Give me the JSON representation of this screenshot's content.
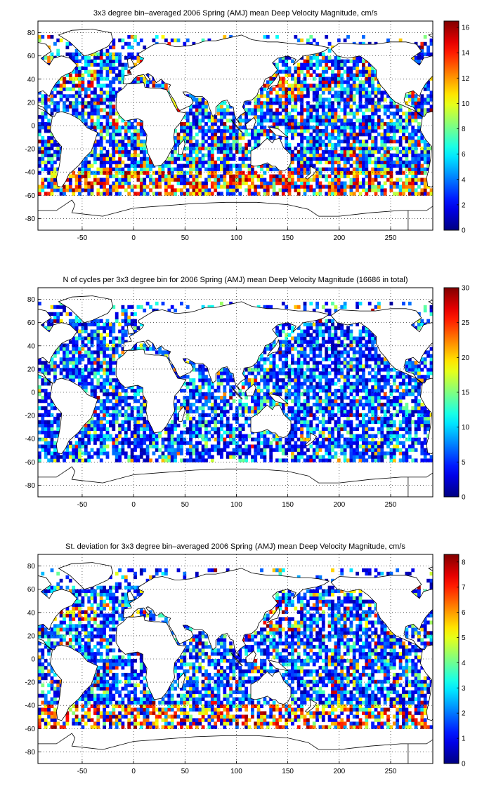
{
  "chart_data": [
    {
      "type": "heatmap",
      "title": "3x3 degree bin–averaged 2006 Spring (AMJ) mean Deep Velocity Magnitude, cm/s",
      "xlabel": "",
      "ylabel": "",
      "xlim": [
        -93,
        291
      ],
      "ylim": [
        -90,
        90
      ],
      "xticks": [
        "-50",
        "0",
        "50",
        "100",
        "150",
        "200",
        "250"
      ],
      "yticks": [
        "80",
        "60",
        "40",
        "20",
        "0",
        "-20",
        "-40",
        "-60",
        "-80"
      ],
      "grid": true,
      "colorbar": {
        "range": [
          0,
          16.5
        ],
        "ticks": [
          "0",
          "2",
          "4",
          "6",
          "8",
          "10",
          "12",
          "14",
          "16"
        ]
      },
      "colormap": "jet",
      "bin_size_deg": 3,
      "scatter_seed": 11,
      "density": 0.78,
      "colormix": [
        0.55,
        0.25,
        0.12,
        0.08
      ],
      "boost_hotspots": true
    },
    {
      "type": "heatmap",
      "title": "N of cycles per 3x3 degree bin for 2006 Spring (AMJ) mean Deep Velocity Magnitude (16686 in total)",
      "xlabel": "",
      "ylabel": "",
      "xlim": [
        -93,
        291
      ],
      "ylim": [
        -90,
        90
      ],
      "xticks": [
        "-50",
        "0",
        "50",
        "100",
        "150",
        "200",
        "250"
      ],
      "yticks": [
        "80",
        "60",
        "40",
        "20",
        "0",
        "-20",
        "-40",
        "-60",
        "-80"
      ],
      "grid": true,
      "colorbar": {
        "range": [
          0,
          30
        ],
        "ticks": [
          "0",
          "5",
          "10",
          "15",
          "20",
          "25",
          "30"
        ]
      },
      "colormap": "jet",
      "bin_size_deg": 3,
      "scatter_seed": 29,
      "density": 0.74,
      "colormix": [
        0.68,
        0.24,
        0.06,
        0.02
      ],
      "boost_hotspots": false
    },
    {
      "type": "heatmap",
      "title": "St. deviation for 3x3 degree bin–averaged 2006 Spring (AMJ) mean Deep Velocity Magnitude, cm/s",
      "xlabel": "",
      "ylabel": "",
      "xlim": [
        -93,
        291
      ],
      "ylim": [
        -90,
        90
      ],
      "xticks": [
        "-50",
        "0",
        "50",
        "100",
        "150",
        "200",
        "250"
      ],
      "yticks": [
        "80",
        "60",
        "40",
        "20",
        "0",
        "-20",
        "-40",
        "-60",
        "-80"
      ],
      "grid": true,
      "colorbar": {
        "range": [
          0,
          8.3
        ],
        "ticks": [
          "0",
          "1",
          "2",
          "3",
          "4",
          "5",
          "6",
          "7",
          "8"
        ]
      },
      "colormap": "jet",
      "bin_size_deg": 3,
      "scatter_seed": 47,
      "density": 0.72,
      "colormix": [
        0.66,
        0.22,
        0.08,
        0.04
      ],
      "boost_hotspots": true
    }
  ]
}
